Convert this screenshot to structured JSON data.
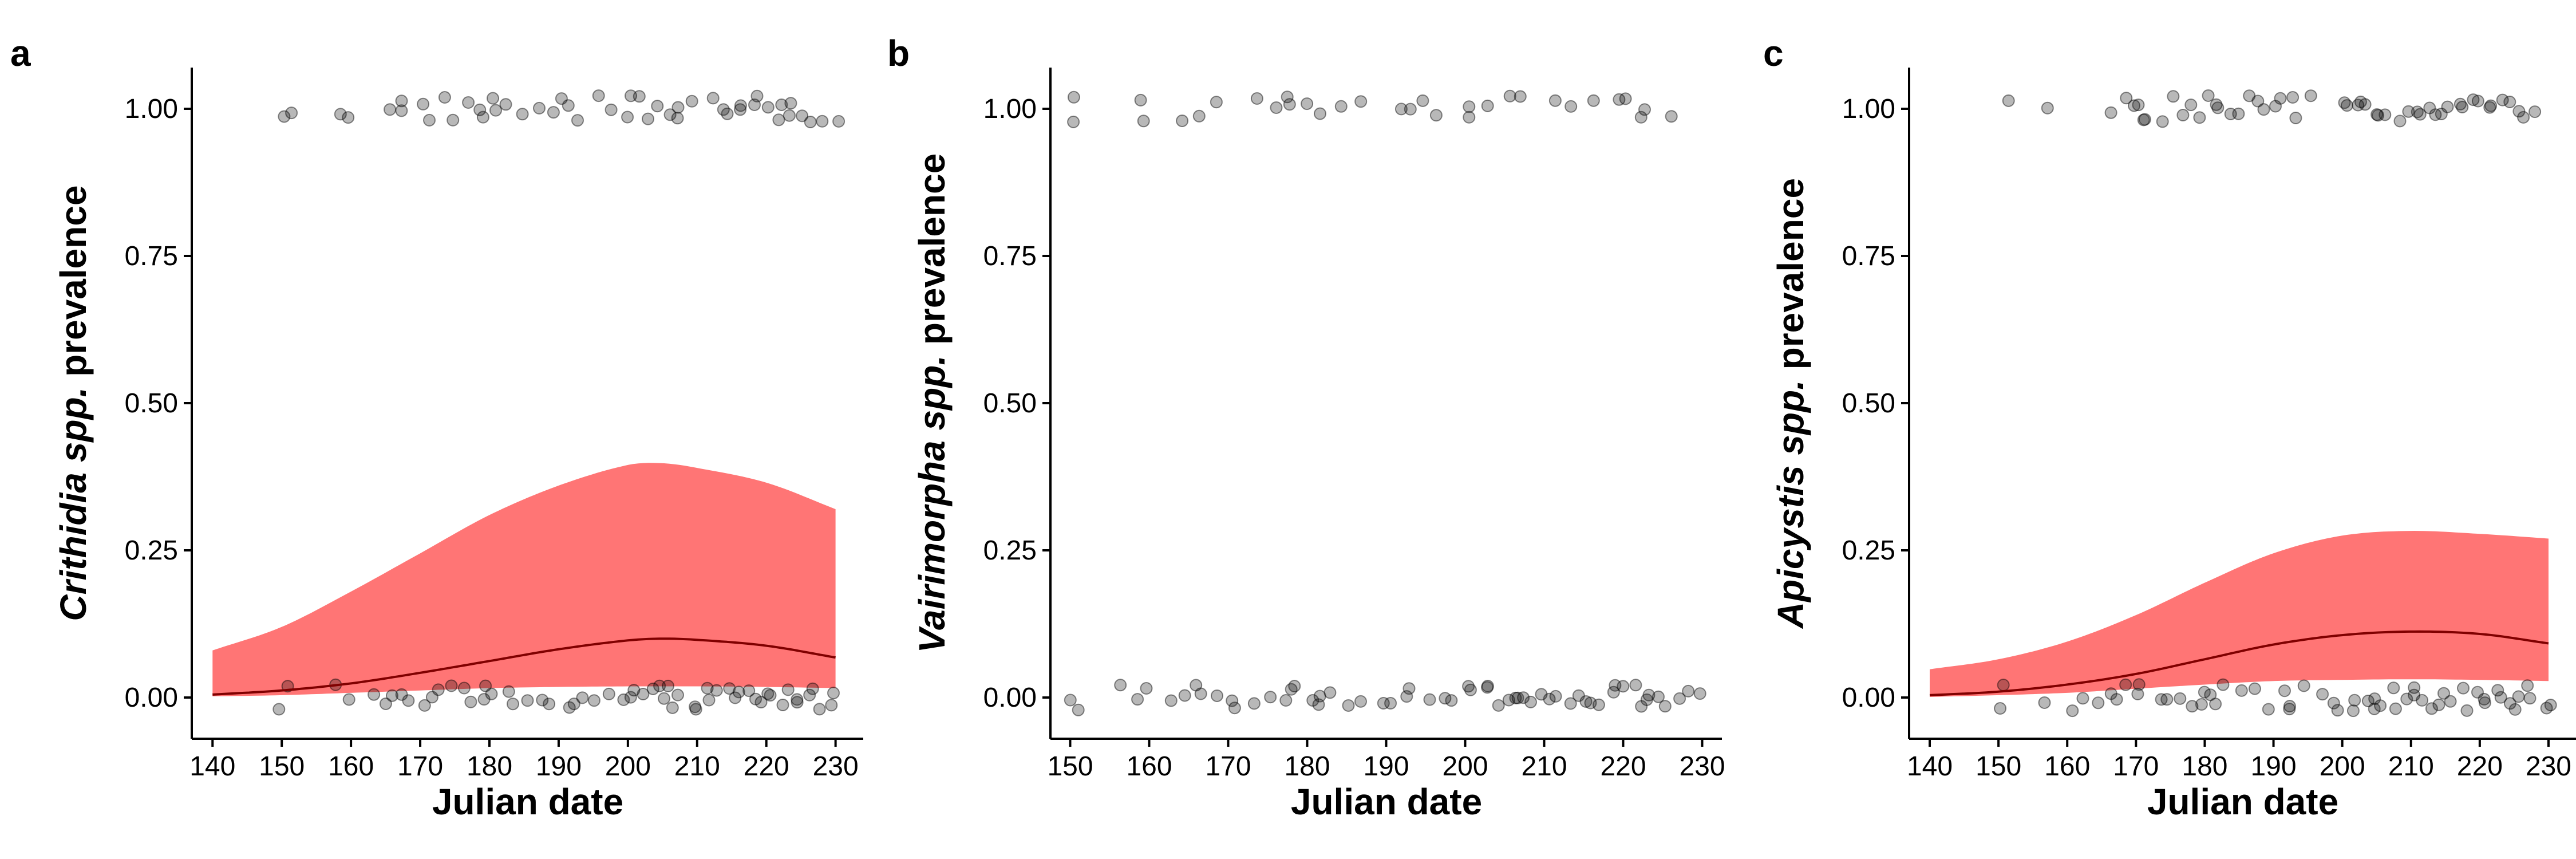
{
  "chart_data": [
    {
      "panel": "a",
      "type": "scatter",
      "xlabel": "Julian date",
      "ylabel_italic": "Crithidia spp.",
      "ylabel_rest": " prevalence",
      "xlim": [
        137,
        234
      ],
      "ylim": [
        -0.07,
        1.07
      ],
      "x_ticks": [
        140,
        150,
        160,
        170,
        180,
        190,
        200,
        210,
        220,
        230
      ],
      "y_ticks": [
        0,
        0.25,
        0.5,
        0.75,
        1
      ],
      "y_tick_labels": [
        "0.00",
        "0.25",
        "0.50",
        "0.75",
        "1.00"
      ],
      "fit": {
        "x": [
          140,
          150,
          160,
          170,
          180,
          190,
          200,
          205,
          210,
          220,
          230
        ],
        "mean": [
          0.005,
          0.012,
          0.024,
          0.042,
          0.062,
          0.082,
          0.097,
          0.1,
          0.098,
          0.088,
          0.068
        ],
        "lower": [
          0.002,
          0.004,
          0.008,
          0.012,
          0.016,
          0.018,
          0.019,
          0.019,
          0.019,
          0.018,
          0.016
        ],
        "upper": [
          0.08,
          0.12,
          0.18,
          0.245,
          0.31,
          0.36,
          0.395,
          0.398,
          0.39,
          0.365,
          0.32
        ]
      },
      "points_positive": [
        150,
        151,
        158,
        160,
        166,
        167,
        168,
        170,
        171,
        173,
        175,
        177,
        178,
        179,
        180,
        181,
        183,
        185,
        187,
        189,
        191,
        192,
        193,
        195,
        197,
        200,
        201,
        202,
        203,
        205,
        206,
        207,
        208,
        210,
        212,
        214,
        215,
        216,
        217,
        218,
        219,
        220,
        221,
        222,
        223,
        224,
        225,
        226,
        228,
        230
      ],
      "points_negative": [
        150,
        151,
        158,
        160,
        163,
        165,
        166,
        167,
        168,
        170,
        171,
        173,
        175,
        177,
        178,
        179,
        180,
        181,
        182,
        183,
        185,
        187,
        189,
        191,
        192,
        193,
        195,
        197,
        199,
        200,
        201,
        202,
        203,
        204,
        205,
        206,
        207,
        208,
        209,
        210,
        211,
        212,
        213,
        214,
        215,
        216,
        217,
        218,
        219,
        220,
        221,
        222,
        223,
        224,
        225,
        226,
        227,
        228,
        229,
        230
      ]
    },
    {
      "panel": "b",
      "type": "scatter",
      "xlabel": "Julian date",
      "ylabel_italic": "Vairimorpha spp.",
      "ylabel_rest": " prevalence",
      "xlim": [
        147.5,
        232.5
      ],
      "ylim": [
        -0.07,
        1.07
      ],
      "x_ticks": [
        150,
        160,
        170,
        180,
        190,
        200,
        210,
        220,
        230
      ],
      "y_ticks": [
        0,
        0.25,
        0.5,
        0.75,
        1
      ],
      "y_tick_labels": [
        "0.00",
        "0.25",
        "0.50",
        "0.75",
        "1.00"
      ],
      "fit": null,
      "points_positive": [
        150,
        151,
        159,
        160,
        164,
        166,
        168,
        173,
        176,
        177,
        178,
        180,
        182,
        184,
        187,
        192,
        193,
        194,
        196,
        200,
        201,
        203,
        205,
        207,
        211,
        214,
        217,
        220,
        221,
        222,
        223,
        226
      ],
      "points_negative": [
        150,
        151,
        156,
        158,
        160,
        163,
        165,
        166,
        167,
        168,
        170,
        171,
        173,
        175,
        177,
        178,
        179,
        180,
        181,
        182,
        183,
        185,
        187,
        189,
        191,
        192,
        193,
        195,
        197,
        199,
        200,
        201,
        202,
        203,
        204,
        205,
        206,
        207,
        208,
        209,
        210,
        211,
        212,
        213,
        214,
        215,
        216,
        217,
        218,
        219,
        220,
        221,
        222,
        223,
        224,
        225,
        226,
        227,
        228,
        229
      ]
    },
    {
      "panel": "c",
      "type": "scatter",
      "xlabel": "Julian date",
      "ylabel_italic": "Apicystis spp.",
      "ylabel_rest": " prevalence",
      "xlim": [
        137,
        234
      ],
      "ylim": [
        -0.07,
        1.07
      ],
      "x_ticks": [
        140,
        150,
        160,
        170,
        180,
        190,
        200,
        210,
        220,
        230
      ],
      "y_ticks": [
        0,
        0.25,
        0.5,
        0.75,
        1
      ],
      "y_tick_labels": [
        "0.00",
        "0.25",
        "0.50",
        "0.75",
        "1.00"
      ],
      "fit": {
        "x": [
          140,
          150,
          160,
          170,
          180,
          190,
          200,
          210,
          220,
          230
        ],
        "mean": [
          0.004,
          0.01,
          0.022,
          0.04,
          0.065,
          0.09,
          0.106,
          0.112,
          0.108,
          0.092
        ],
        "lower": [
          0.001,
          0.004,
          0.008,
          0.015,
          0.022,
          0.028,
          0.03,
          0.031,
          0.03,
          0.028
        ],
        "upper": [
          0.048,
          0.065,
          0.095,
          0.14,
          0.195,
          0.245,
          0.275,
          0.283,
          0.278,
          0.27
        ]
      },
      "points_positive": [
        151,
        157,
        167,
        168,
        169,
        170,
        171,
        172,
        174,
        175,
        177,
        178,
        179,
        180,
        181,
        182,
        183,
        185,
        186,
        187,
        189,
        190,
        191,
        192,
        193,
        195,
        200,
        201,
        202,
        203,
        204,
        205,
        206,
        207,
        208,
        210,
        211,
        212,
        213,
        214,
        215,
        216,
        217,
        218,
        219,
        220,
        221,
        222,
        223,
        225,
        226,
        227,
        228
      ],
      "points_negative": [
        150,
        151,
        157,
        160,
        163,
        165,
        166,
        167,
        168,
        170,
        171,
        173,
        175,
        177,
        178,
        179,
        180,
        181,
        182,
        183,
        185,
        187,
        189,
        191,
        192,
        193,
        195,
        197,
        199,
        200,
        201,
        202,
        203,
        204,
        205,
        206,
        207,
        208,
        209,
        210,
        211,
        212,
        213,
        214,
        215,
        216,
        217,
        218,
        219,
        220,
        221,
        222,
        223,
        224,
        225,
        226,
        227,
        228,
        229,
        230
      ]
    }
  ]
}
